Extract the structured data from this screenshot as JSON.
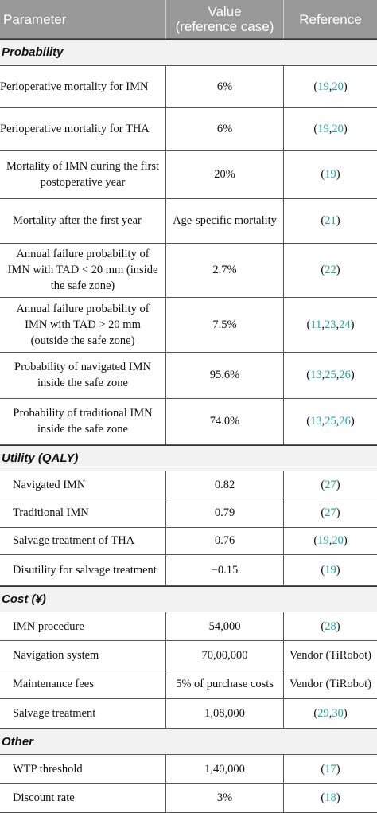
{
  "header": {
    "parameter": "Parameter",
    "value_line1": "Value",
    "value_line2": "(reference case)",
    "reference": "Reference"
  },
  "colors": {
    "header_bg": "#999999",
    "section_bg": "#f2f2f2",
    "citation": "#1fa3a3"
  },
  "sections": [
    {
      "title": "Probability",
      "rows": [
        {
          "parameter": "Perioperative mortality for IMN",
          "value": "6%",
          "refs": [
            "19",
            "20"
          ],
          "style": "hanging"
        },
        {
          "parameter": "Perioperative mortality for THA",
          "value": "6%",
          "refs": [
            "19",
            "20"
          ],
          "style": "hanging"
        },
        {
          "parameter": "Mortality of IMN during the first postoperative year",
          "value": "20%",
          "refs": [
            "19"
          ],
          "style": "centered"
        },
        {
          "parameter": "Mortality after the first year",
          "value": "Age-specific mortality",
          "refs": [
            "21"
          ],
          "style": ""
        },
        {
          "parameter": "Annual failure probability of IMN with TAD < 20 mm (inside the safe zone)",
          "value": "2.7%",
          "refs": [
            "22"
          ],
          "style": "centered"
        },
        {
          "parameter": "Annual failure probability of IMN with TAD > 20 mm (outside the safe zone)",
          "value": "7.5%",
          "refs": [
            "11",
            "23",
            "24"
          ],
          "style": "centered"
        },
        {
          "parameter": "Probability of navigated IMN inside the safe zone",
          "value": "95.6%",
          "refs": [
            "13",
            "25",
            "26"
          ],
          "style": "centered"
        },
        {
          "parameter": "Probability of traditional IMN inside the safe zone",
          "value": "74.0%",
          "refs": [
            "13",
            "25",
            "26"
          ],
          "style": "centered"
        }
      ]
    },
    {
      "title": "Utility (QALY)",
      "rows": [
        {
          "parameter": "Navigated IMN",
          "value": "0.82",
          "refs": [
            "27"
          ],
          "style": ""
        },
        {
          "parameter": "Traditional IMN",
          "value": "0.79",
          "refs": [
            "27"
          ],
          "style": ""
        },
        {
          "parameter": "Salvage treatment of THA",
          "value": "0.76",
          "refs": [
            "19",
            "20"
          ],
          "style": ""
        },
        {
          "parameter": "Disutility for salvage treatment",
          "value": "−0.15",
          "refs": [
            "19"
          ],
          "style": ""
        }
      ]
    },
    {
      "title": "Cost (¥)",
      "rows": [
        {
          "parameter": "IMN procedure",
          "value": "54,000",
          "refs": [
            "28"
          ],
          "style": ""
        },
        {
          "parameter": "Navigation system",
          "value": "70,00,000",
          "reference_text": "Vendor (TiRobot)",
          "style": ""
        },
        {
          "parameter": "Maintenance fees",
          "value": "5% of purchase costs",
          "reference_text": "Vendor (TiRobot)",
          "style": ""
        },
        {
          "parameter": "Salvage treatment",
          "value": "1,08,000",
          "refs": [
            "29",
            "30"
          ],
          "style": ""
        }
      ]
    },
    {
      "title": "Other",
      "rows": [
        {
          "parameter": "WTP threshold",
          "value": "1,40,000",
          "refs": [
            "17"
          ],
          "style": ""
        },
        {
          "parameter": "Discount rate",
          "value": "3%",
          "refs": [
            "18"
          ],
          "style": ""
        }
      ]
    }
  ]
}
